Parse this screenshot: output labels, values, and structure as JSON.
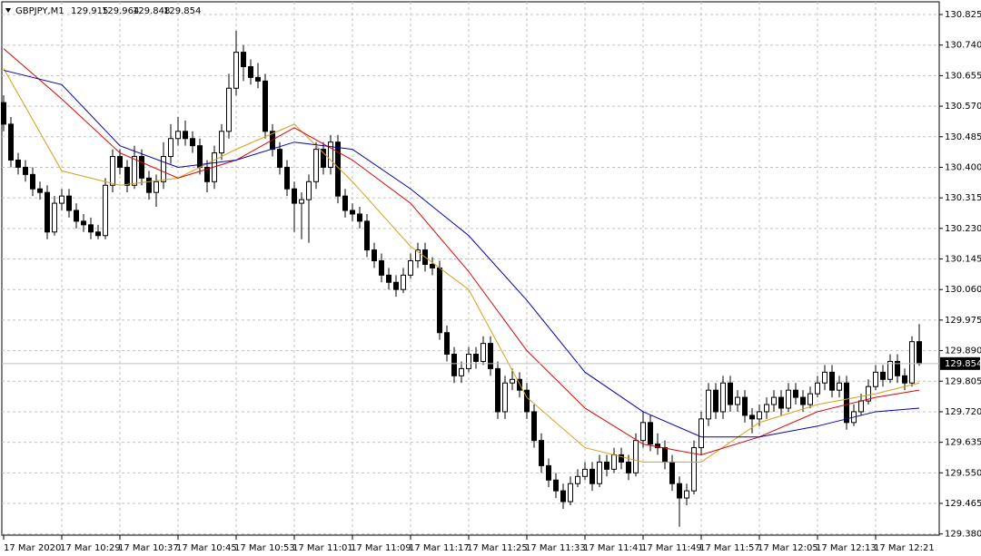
{
  "chart_data": {
    "type": "candlestick",
    "symbol": "GBPJPY,M1",
    "ylim": [
      129.38,
      130.825
    ],
    "yticks": [
      130.825,
      {
        "value": 130.74,
        "label": "130.740"
      },
      130.655,
      {
        "value": 130.57,
        "label": "130.570"
      },
      130.485,
      {
        "value": 130.4,
        "label": "130.400"
      },
      130.315,
      {
        "value": 130.23,
        "label": "130.230"
      },
      130.145,
      {
        "value": 130.06,
        "label": "130.060"
      },
      129.975,
      {
        "value": 129.89,
        "label": "129.890"
      },
      129.805,
      {
        "value": 129.72,
        "label": "129.720"
      },
      129.635,
      {
        "value": 129.55,
        "label": "129.550"
      },
      129.465,
      {
        "value": 129.38,
        "label": "129.380"
      }
    ],
    "xticks": [
      {
        "value": 0,
        "label": "17 Mar 2020"
      },
      {
        "value": 8,
        "label": "17 Mar 10:29"
      },
      {
        "value": 16,
        "label": "17 Mar 10:37"
      },
      {
        "value": 24,
        "label": "17 Mar 10:45"
      },
      {
        "value": 32,
        "label": "17 Mar 10:53"
      },
      {
        "value": 40,
        "label": "17 Mar 11:01"
      },
      {
        "value": 48,
        "label": "17 Mar 11:09"
      },
      {
        "value": 56,
        "label": "17 Mar 11:17"
      },
      {
        "value": 64,
        "label": "17 Mar 11:25"
      },
      {
        "value": 72,
        "label": "17 Mar 11:33"
      },
      {
        "value": 80,
        "label": "17 Mar 11:41"
      },
      {
        "value": 88,
        "label": "17 Mar 11:49"
      },
      {
        "value": 96,
        "label": "17 Mar 11:57"
      },
      {
        "value": 104,
        "label": "17 Mar 12:05"
      },
      {
        "value": 112,
        "label": "17 Mar 12:13"
      },
      {
        "value": 120,
        "label": "17 Mar 12:21"
      }
    ],
    "grid": true,
    "ohlc": [
      [
        130.58,
        130.6,
        130.5,
        130.52
      ],
      [
        130.52,
        130.54,
        130.4,
        130.42
      ],
      [
        130.42,
        130.44,
        130.38,
        130.4
      ],
      [
        130.4,
        130.42,
        130.36,
        130.38
      ],
      [
        130.38,
        130.4,
        130.32,
        130.34
      ],
      [
        130.34,
        130.36,
        130.31,
        130.33
      ],
      [
        130.33,
        130.35,
        130.2,
        130.22
      ],
      [
        130.22,
        130.32,
        130.21,
        130.3
      ],
      [
        130.3,
        130.34,
        130.28,
        130.32
      ],
      [
        130.32,
        130.34,
        130.26,
        130.28
      ],
      [
        130.28,
        130.3,
        130.23,
        130.25
      ],
      [
        130.25,
        130.27,
        130.22,
        130.24
      ],
      [
        130.24,
        130.26,
        130.2,
        130.22
      ],
      [
        130.22,
        130.24,
        130.2,
        130.21
      ],
      [
        130.21,
        130.37,
        130.2,
        130.35
      ],
      [
        130.35,
        130.45,
        130.33,
        130.43
      ],
      [
        130.43,
        130.45,
        130.38,
        130.4
      ],
      [
        130.4,
        130.42,
        130.33,
        130.35
      ],
      [
        130.35,
        130.46,
        130.34,
        130.43
      ],
      [
        130.43,
        130.45,
        130.35,
        130.37
      ],
      [
        130.37,
        130.39,
        130.31,
        130.33
      ],
      [
        130.33,
        130.38,
        130.29,
        130.36
      ],
      [
        130.36,
        130.47,
        130.34,
        130.43
      ],
      [
        130.43,
        130.52,
        130.41,
        130.48
      ],
      [
        130.48,
        130.54,
        130.46,
        130.5
      ],
      [
        130.5,
        130.53,
        130.46,
        130.48
      ],
      [
        130.48,
        130.5,
        130.44,
        130.46
      ],
      [
        130.46,
        130.48,
        130.38,
        130.4
      ],
      [
        130.4,
        130.42,
        130.33,
        130.36
      ],
      [
        130.36,
        130.46,
        130.34,
        130.44
      ],
      [
        130.44,
        130.52,
        130.42,
        130.5
      ],
      [
        130.5,
        130.66,
        130.48,
        130.62
      ],
      [
        130.62,
        130.78,
        130.6,
        130.72
      ],
      [
        130.72,
        130.74,
        130.64,
        130.68
      ],
      [
        130.68,
        130.7,
        130.63,
        130.65
      ],
      [
        130.65,
        130.69,
        130.62,
        130.64
      ],
      [
        130.64,
        130.66,
        130.48,
        130.5
      ],
      [
        130.5,
        130.52,
        130.43,
        130.45
      ],
      [
        130.45,
        130.47,
        130.38,
        130.4
      ],
      [
        130.4,
        130.42,
        130.32,
        130.34
      ],
      [
        130.34,
        130.36,
        130.22,
        130.3
      ],
      [
        130.3,
        130.33,
        130.2,
        130.31
      ],
      [
        130.31,
        130.38,
        130.19,
        130.36
      ],
      [
        130.36,
        130.47,
        130.34,
        130.45
      ],
      [
        130.45,
        130.47,
        130.38,
        130.4
      ],
      [
        130.4,
        130.49,
        130.38,
        130.47
      ],
      [
        130.47,
        130.49,
        130.3,
        130.32
      ],
      [
        130.32,
        130.34,
        130.26,
        130.28
      ],
      [
        130.28,
        130.3,
        130.25,
        130.27
      ],
      [
        130.27,
        130.29,
        130.23,
        130.25
      ],
      [
        130.25,
        130.27,
        130.15,
        130.17
      ],
      [
        130.17,
        130.19,
        130.12,
        130.14
      ],
      [
        130.14,
        130.16,
        130.08,
        130.1
      ],
      [
        130.1,
        130.12,
        130.06,
        130.08
      ],
      [
        130.08,
        130.1,
        130.04,
        130.06
      ],
      [
        130.06,
        130.12,
        130.05,
        130.1
      ],
      [
        130.1,
        130.16,
        130.09,
        130.14
      ],
      [
        130.14,
        130.19,
        130.12,
        130.17
      ],
      [
        130.17,
        130.19,
        130.11,
        130.13
      ],
      [
        130.13,
        130.15,
        130.1,
        130.12
      ],
      [
        130.12,
        130.14,
        129.92,
        129.94
      ],
      [
        129.94,
        129.96,
        129.86,
        129.88
      ],
      [
        129.88,
        129.9,
        129.8,
        129.82
      ],
      [
        129.82,
        129.86,
        129.8,
        129.84
      ],
      [
        129.84,
        129.9,
        129.83,
        129.88
      ],
      [
        129.88,
        129.9,
        129.84,
        129.86
      ],
      [
        129.86,
        129.93,
        129.85,
        129.91
      ],
      [
        129.91,
        129.93,
        129.82,
        129.84
      ],
      [
        129.84,
        129.86,
        129.7,
        129.72
      ],
      [
        129.72,
        129.82,
        129.7,
        129.8
      ],
      [
        129.8,
        129.84,
        129.78,
        129.81
      ],
      [
        129.81,
        129.83,
        129.76,
        129.78
      ],
      [
        129.78,
        129.8,
        129.7,
        129.72
      ],
      [
        129.72,
        129.74,
        129.62,
        129.64
      ],
      [
        129.64,
        129.66,
        129.55,
        129.57
      ],
      [
        129.57,
        129.59,
        129.51,
        129.53
      ],
      [
        129.53,
        129.55,
        129.48,
        129.5
      ],
      [
        129.5,
        129.52,
        129.45,
        129.47
      ],
      [
        129.47,
        129.54,
        129.46,
        129.52
      ],
      [
        129.52,
        129.56,
        129.51,
        129.54
      ],
      [
        129.54,
        129.58,
        129.53,
        129.56
      ],
      [
        129.56,
        129.58,
        129.5,
        129.52
      ],
      [
        129.52,
        129.6,
        129.51,
        129.58
      ],
      [
        129.58,
        129.6,
        129.54,
        129.56
      ],
      [
        129.56,
        129.62,
        129.55,
        129.6
      ],
      [
        129.6,
        129.62,
        129.56,
        129.58
      ],
      [
        129.58,
        129.6,
        129.53,
        129.55
      ],
      [
        129.55,
        129.66,
        129.54,
        129.64
      ],
      [
        129.64,
        129.72,
        129.62,
        129.69
      ],
      [
        129.69,
        129.71,
        129.61,
        129.63
      ],
      [
        129.63,
        129.66,
        129.6,
        129.62
      ],
      [
        129.62,
        129.64,
        129.56,
        129.58
      ],
      [
        129.58,
        129.6,
        129.5,
        129.52
      ],
      [
        129.52,
        129.54,
        129.4,
        129.48
      ],
      [
        129.48,
        129.52,
        129.46,
        129.5
      ],
      [
        129.5,
        129.64,
        129.49,
        129.62
      ],
      [
        129.62,
        129.72,
        129.6,
        129.7
      ],
      [
        129.7,
        129.8,
        129.68,
        129.78
      ],
      [
        129.78,
        129.8,
        129.7,
        129.72
      ],
      [
        129.72,
        129.82,
        129.7,
        129.8
      ],
      [
        129.8,
        129.82,
        129.72,
        129.74
      ],
      [
        129.74,
        129.78,
        129.72,
        129.76
      ],
      [
        129.76,
        129.78,
        129.69,
        129.71
      ],
      [
        129.71,
        129.73,
        129.66,
        129.7
      ],
      [
        129.7,
        129.74,
        129.68,
        129.72
      ],
      [
        129.72,
        129.76,
        129.7,
        129.74
      ],
      [
        129.74,
        129.78,
        129.72,
        129.76
      ],
      [
        129.76,
        129.78,
        129.71,
        129.73
      ],
      [
        129.73,
        129.8,
        129.72,
        129.78
      ],
      [
        129.78,
        129.8,
        129.74,
        129.76
      ],
      [
        129.76,
        129.78,
        129.72,
        129.74
      ],
      [
        129.74,
        129.79,
        129.73,
        129.77
      ],
      [
        129.77,
        129.82,
        129.76,
        129.8
      ],
      [
        129.8,
        129.85,
        129.78,
        129.83
      ],
      [
        129.83,
        129.85,
        129.76,
        129.78
      ],
      [
        129.78,
        129.82,
        129.76,
        129.8
      ],
      [
        129.8,
        129.82,
        129.67,
        129.69
      ],
      [
        129.69,
        129.74,
        129.68,
        129.72
      ],
      [
        129.72,
        129.77,
        129.71,
        129.75
      ],
      [
        129.75,
        129.81,
        129.74,
        129.79
      ],
      [
        129.79,
        129.85,
        129.78,
        129.83
      ],
      [
        129.83,
        129.85,
        129.79,
        129.81
      ],
      [
        129.81,
        129.88,
        129.8,
        129.86
      ],
      [
        129.86,
        129.88,
        129.8,
        129.82
      ],
      [
        129.82,
        129.84,
        129.78,
        129.8
      ],
      [
        129.8,
        129.93,
        129.79,
        129.915
      ],
      [
        129.915,
        129.964,
        129.848,
        129.854
      ]
    ],
    "series": [
      {
        "color": "#d4a017",
        "x": [
          0,
          8,
          16,
          24,
          32,
          40,
          48,
          56,
          64,
          72,
          80,
          88,
          96,
          104,
          112,
          120,
          126
        ],
        "values": [
          130.675,
          130.39,
          130.35,
          130.37,
          130.45,
          130.52,
          130.36,
          130.18,
          130.06,
          129.76,
          129.62,
          129.58,
          129.58,
          129.69,
          129.74,
          129.77,
          129.8
        ]
      },
      {
        "color": "#e00000",
        "x": [
          0,
          8,
          16,
          24,
          32,
          40,
          48,
          56,
          64,
          72,
          80,
          88,
          96,
          104,
          112,
          120,
          126
        ],
        "values": [
          130.73,
          130.59,
          130.44,
          130.37,
          130.42,
          130.51,
          130.42,
          130.3,
          130.11,
          129.89,
          129.73,
          129.63,
          129.6,
          129.65,
          129.72,
          129.76,
          129.78
        ]
      },
      {
        "color": "#0000b0",
        "x": [
          0,
          8,
          16,
          24,
          32,
          40,
          48,
          56,
          64,
          72,
          80,
          88,
          96,
          104,
          112,
          120,
          126
        ],
        "values": [
          130.67,
          130.63,
          130.46,
          130.4,
          130.42,
          130.47,
          130.45,
          130.34,
          130.21,
          130.03,
          129.83,
          129.72,
          129.65,
          129.65,
          129.68,
          129.72,
          129.73
        ]
      }
    ]
  }
}
